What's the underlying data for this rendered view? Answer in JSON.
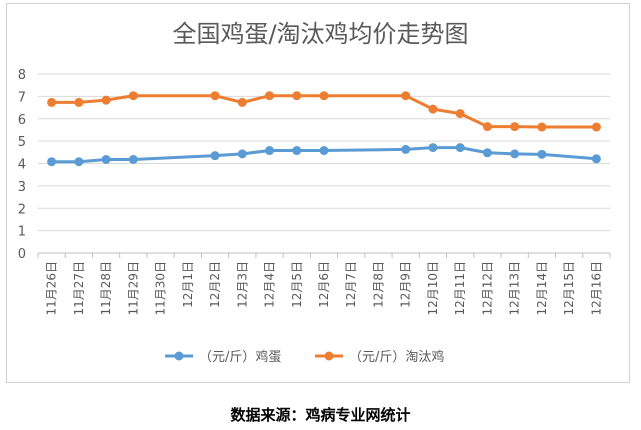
{
  "chart_data": {
    "type": "line",
    "title": "全国鸡蛋/淘汰鸡均价走势图",
    "xlabel": "",
    "ylabel": "",
    "ylim": [
      0,
      8
    ],
    "yticks": [
      0,
      1,
      2,
      3,
      4,
      5,
      6,
      7,
      8
    ],
    "grid": true,
    "legend": "bottom",
    "categories": [
      "11月26日",
      "11月27日",
      "11月28日",
      "11月29日",
      "11月30日",
      "12月1日",
      "12月2日",
      "12月3日",
      "12月4日",
      "12月5日",
      "12月6日",
      "12月7日",
      "12月8日",
      "12月9日",
      "12月10日",
      "12月11日",
      "12月12日",
      "12月13日",
      "12月14日",
      "12月15日",
      "12月16日"
    ],
    "series": [
      {
        "name": "（元/斤）鸡蛋",
        "color": "#5b9bd5",
        "values": [
          4.08,
          4.08,
          4.18,
          4.18,
          null,
          null,
          4.35,
          4.43,
          4.58,
          4.58,
          4.58,
          null,
          null,
          4.63,
          4.71,
          4.71,
          4.48,
          4.43,
          4.41,
          null,
          4.21
        ]
      },
      {
        "name": "（元/斤）淘汰鸡",
        "color": "#ed7d31",
        "values": [
          6.73,
          6.73,
          6.83,
          7.03,
          null,
          null,
          7.03,
          6.73,
          7.03,
          7.03,
          7.03,
          null,
          null,
          7.03,
          6.43,
          6.23,
          5.65,
          5.65,
          5.63,
          null,
          5.63
        ]
      }
    ]
  },
  "source": "数据来源：鸡病专业网统计"
}
